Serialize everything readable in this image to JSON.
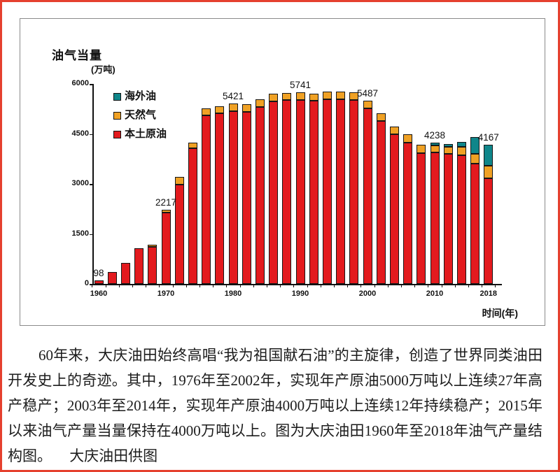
{
  "page": {
    "border_color": "#e5402e"
  },
  "chart_data": {
    "type": "stacked-bar",
    "title": "油气当量",
    "unit_label": "(万吨)",
    "xlabel": "时间(年)",
    "ylim": [
      0,
      6000
    ],
    "yticks": [
      0,
      1500,
      3000,
      4500,
      6000
    ],
    "x_tick_years": [
      1960,
      1970,
      1980,
      1990,
      2000,
      2010,
      2018
    ],
    "grid": false,
    "legend_position": "inside-top-left",
    "years": [
      1960,
      1962,
      1964,
      1966,
      1968,
      1970,
      1972,
      1974,
      1976,
      1978,
      1980,
      1982,
      1984,
      1986,
      1988,
      1990,
      1992,
      1994,
      1996,
      1998,
      2000,
      2002,
      2004,
      2006,
      2008,
      2010,
      2012,
      2014,
      2016,
      2018
    ],
    "series": [
      {
        "name": "本土原油",
        "color": "#e31a1e",
        "values": [
          98,
          360,
          620,
          1060,
          1120,
          2150,
          2980,
          4060,
          5060,
          5110,
          5181,
          5160,
          5310,
          5480,
          5510,
          5521,
          5490,
          5540,
          5540,
          5520,
          5257,
          4890,
          4490,
          4240,
          3920,
          3938,
          3900,
          3870,
          3600,
          3167
        ]
      },
      {
        "name": "天然气",
        "color": "#f0a124",
        "values": [
          0,
          0,
          0,
          0,
          50,
          67,
          220,
          180,
          200,
          210,
          240,
          230,
          220,
          230,
          220,
          220,
          220,
          230,
          230,
          230,
          230,
          220,
          240,
          250,
          260,
          210,
          215,
          240,
          300,
          380
        ]
      },
      {
        "name": "海外油",
        "color": "#0f868a",
        "values": [
          0,
          0,
          0,
          0,
          0,
          0,
          0,
          0,
          0,
          0,
          0,
          0,
          0,
          0,
          0,
          0,
          0,
          0,
          0,
          0,
          0,
          0,
          0,
          0,
          0,
          90,
          85,
          140,
          500,
          620
        ]
      }
    ],
    "legend": [
      {
        "label": "海外油",
        "color": "#0f868a"
      },
      {
        "label": "天然气",
        "color": "#f0a124"
      },
      {
        "label": "本土原油",
        "color": "#e31a1e"
      }
    ],
    "point_labels": [
      {
        "year": 1960,
        "value": "98"
      },
      {
        "year": 1970,
        "value": "2217"
      },
      {
        "year": 1980,
        "value": "5421"
      },
      {
        "year": 1990,
        "value": "5741"
      },
      {
        "year": 2000,
        "value": "5487"
      },
      {
        "year": 2010,
        "value": "4238"
      },
      {
        "year": 2018,
        "value": "4167"
      }
    ]
  },
  "caption": {
    "text": "60年来，大庆油田始终高唱“我为祖国献石油”的主旋律，创造了世界同类油田开发史上的奇迹。其中，1976年至2002年，实现年产原油5000万吨以上连续27年高产稳产；2003年至2014年，实现年产原油4000万吨以上连续12年持续稳产；2015年以来油气产量当量保持在4000万吨以上。图为大庆油田1960年至2018年油气产量结构图。",
    "credit": "大庆油田供图"
  }
}
